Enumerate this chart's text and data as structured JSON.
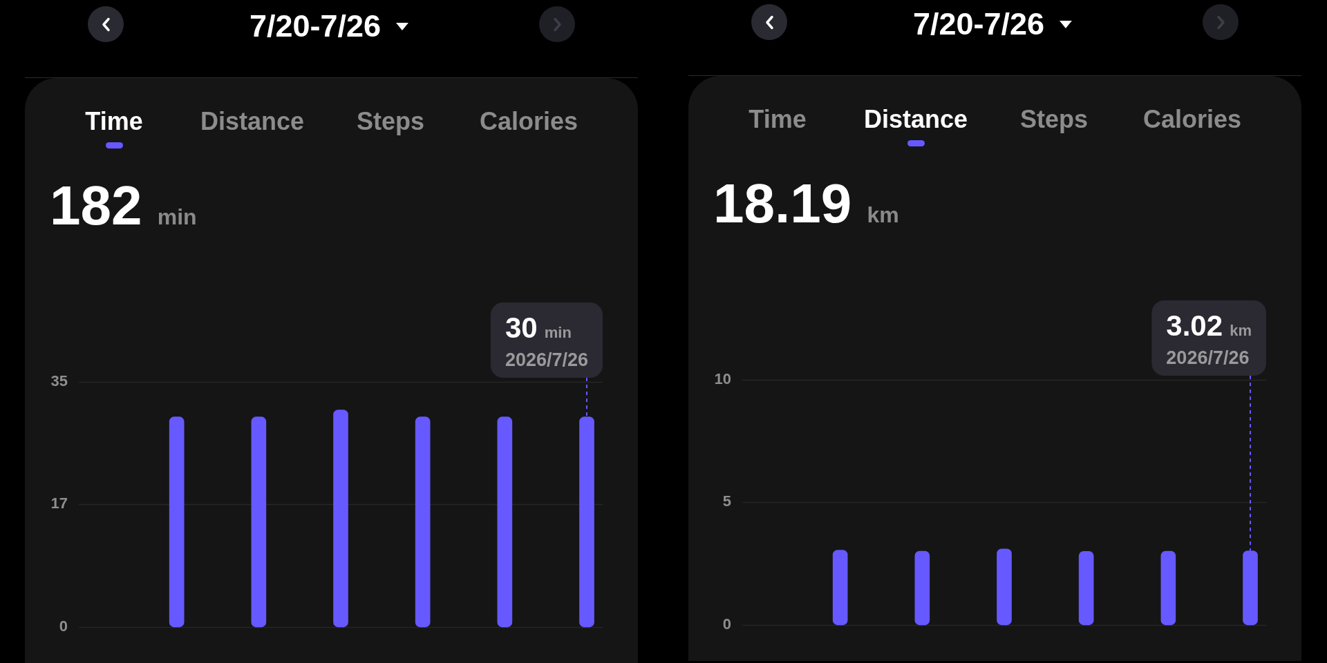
{
  "chart_data": [
    {
      "type": "bar",
      "title": "7/20-7/26",
      "subtitle": "182 min",
      "annotations": [
        "Time",
        "Distance",
        "Steps",
        "Calories",
        "30 min\n2026/7/26"
      ],
      "categories": [
        null,
        null,
        null,
        null,
        null,
        null,
        null
      ],
      "values": [
        null,
        30,
        30,
        31,
        30,
        30,
        30
      ],
      "color": "#6659ff",
      "ylim": [
        0,
        35
      ],
      "yticks": [
        0,
        {
          "value": 17.5,
          "label": "17"
        },
        35
      ],
      "grid": "y",
      "tick_labels": "y"
    },
    {
      "type": "bar",
      "title": "7/20-7/26",
      "subtitle": "18.19 km",
      "annotations": [
        "Time",
        "Distance",
        "Steps",
        "Calories",
        "3.02 km\n2026/7/26"
      ],
      "categories": [
        null,
        null,
        null,
        null,
        null,
        null,
        null
      ],
      "values": [
        null,
        3.05,
        3.01,
        3.1,
        3.0,
        3.01,
        3.02
      ],
      "color": "#6659ff",
      "ylim": [
        0,
        10
      ],
      "yticks": [
        0,
        5,
        10
      ],
      "grid": "y",
      "tick_labels": "y"
    }
  ]
}
